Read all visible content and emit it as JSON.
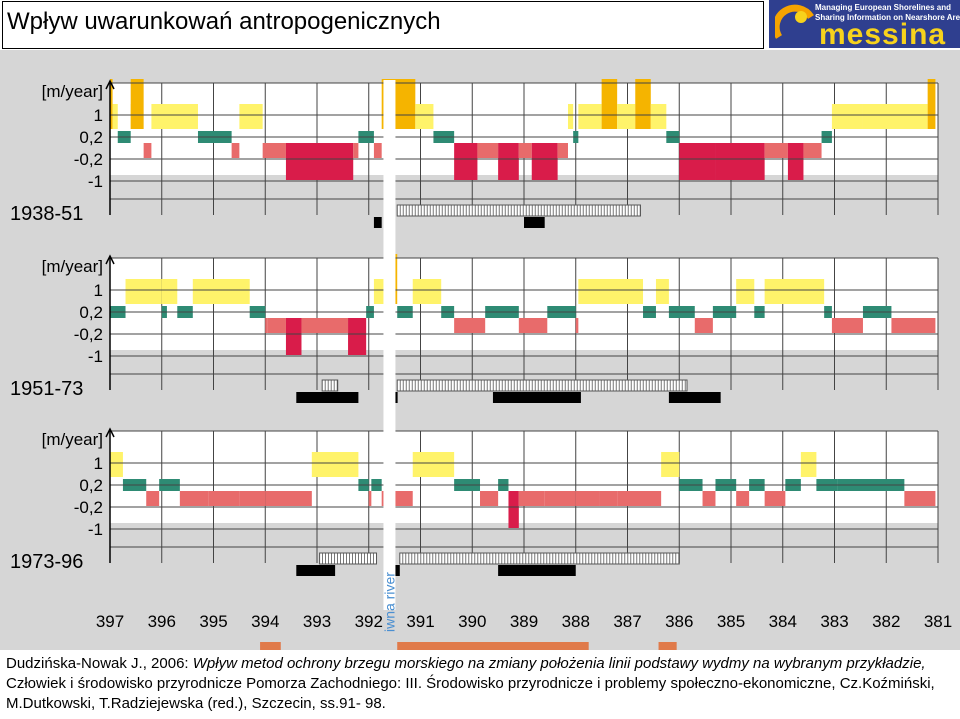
{
  "slide": {
    "title": "Wpływ uwarunkowań antropogenicznych",
    "logo": {
      "word": "messina",
      "tagline": "Managing European Shorelines and\nSharing Information on Nearshore Areas",
      "colors": {
        "background": "#2f3f8f",
        "word": "#f7d21c",
        "sun": "#f5a300"
      }
    }
  },
  "citation": {
    "author": "Dudzińska-Nowak J.",
    "year_part": ", 2006: ",
    "title_italic": "Wpływ metod ochrony brzegu morskiego na zmiany położenia linii podstawy wydmy na wybranym przykładzie,",
    "rest": " Człowiek i środowisko przyrodnicze Pomorza Zachodniego: III. Środowisko przyrodnicze i problemy społeczno-ekonomiczne, Cz.Koźmiński, M.Dutkowski, T.Radziejewska (red.), Szczecin, ss.91- 98."
  },
  "chart_data": {
    "type": "bar",
    "colors": {
      "panel_bg": "#d6d6d6",
      "strong_accretion": "#f5b400",
      "accretion": "#fff36a",
      "stable": "#2e8b74",
      "erosion": "#e86b6b",
      "strong_erosion": "#d91c4a",
      "structure_black": "#000000",
      "groin_outline": "#555555",
      "river_label": "#4a8fd1",
      "city_bar": "#e07a4a"
    },
    "x_axis": {
      "ticks": [
        "397",
        "396",
        "395",
        "394",
        "393",
        "392",
        "391",
        "390",
        "389",
        "388",
        "387",
        "386",
        "385",
        "384",
        "383",
        "382",
        "381"
      ],
      "direction": "km decreasing left to right",
      "river_label": "iwna river",
      "river_km": 391.6
    },
    "category_levels": [
      "1",
      "0,2",
      "-0,2",
      "-1"
    ],
    "unit": "[m/year]",
    "panels": [
      {
        "period": "1938-51",
        "segments": [
          [
            397.0,
            396.95,
            2
          ],
          [
            396.95,
            396.85,
            1
          ],
          [
            396.85,
            396.6,
            0
          ],
          [
            396.6,
            396.5,
            1
          ],
          [
            396.6,
            396.35,
            2
          ],
          [
            396.35,
            396.2,
            -1
          ],
          [
            396.2,
            395.3,
            1
          ],
          [
            395.3,
            394.65,
            0
          ],
          [
            394.65,
            394.5,
            -1
          ],
          [
            394.5,
            394.05,
            1
          ],
          [
            394.05,
            393.6,
            -1
          ],
          [
            393.6,
            392.3,
            -2
          ],
          [
            392.3,
            392.2,
            -1
          ],
          [
            392.2,
            391.9,
            0
          ],
          [
            391.9,
            391.75,
            -1
          ],
          [
            391.75,
            391.1,
            2
          ],
          [
            391.1,
            390.75,
            1
          ],
          [
            390.75,
            390.35,
            0
          ],
          [
            390.35,
            389.9,
            -2
          ],
          [
            389.9,
            389.5,
            -1
          ],
          [
            389.5,
            389.1,
            -2
          ],
          [
            389.1,
            388.85,
            -1
          ],
          [
            388.85,
            388.35,
            -2
          ],
          [
            388.35,
            388.15,
            -1
          ],
          [
            388.15,
            388.05,
            1
          ],
          [
            388.05,
            387.95,
            0
          ],
          [
            387.95,
            387.5,
            1
          ],
          [
            387.5,
            387.2,
            2
          ],
          [
            387.2,
            386.85,
            1
          ],
          [
            386.85,
            386.55,
            2
          ],
          [
            386.55,
            386.25,
            1
          ],
          [
            386.25,
            386.0,
            0
          ],
          [
            386.0,
            385.3,
            -2
          ],
          [
            385.3,
            384.35,
            -2
          ],
          [
            384.35,
            383.9,
            -1
          ],
          [
            383.9,
            383.6,
            -2
          ],
          [
            383.6,
            383.25,
            -1
          ],
          [
            383.25,
            383.05,
            0
          ],
          [
            383.05,
            382.45,
            1
          ],
          [
            382.45,
            381.2,
            1
          ],
          [
            381.2,
            381.05,
            2
          ]
        ],
        "structures": {
          "seawalls": [
            [
              391.9,
              391.75
            ],
            [
              391.68,
              391.6
            ],
            [
              389.0,
              388.6
            ]
          ],
          "groins": [
            [
              391.45,
              386.75
            ]
          ]
        }
      },
      {
        "period": "1951-73",
        "segments": [
          [
            397.0,
            396.7,
            0
          ],
          [
            396.7,
            396.0,
            1
          ],
          [
            396.0,
            395.9,
            0
          ],
          [
            396.0,
            395.7,
            1
          ],
          [
            395.7,
            395.4,
            0
          ],
          [
            395.4,
            394.3,
            1
          ],
          [
            394.3,
            394.0,
            0
          ],
          [
            394.0,
            393.95,
            -1
          ],
          [
            393.95,
            393.6,
            -1
          ],
          [
            393.6,
            393.3,
            -2
          ],
          [
            393.3,
            392.4,
            -1
          ],
          [
            392.4,
            392.05,
            -2
          ],
          [
            392.05,
            391.9,
            0
          ],
          [
            391.9,
            391.65,
            1
          ],
          [
            391.65,
            391.45,
            2
          ],
          [
            391.45,
            391.15,
            0
          ],
          [
            391.15,
            390.6,
            1
          ],
          [
            390.6,
            390.35,
            0
          ],
          [
            390.35,
            389.75,
            -1
          ],
          [
            389.75,
            389.1,
            0
          ],
          [
            389.1,
            388.55,
            -1
          ],
          [
            388.55,
            388.0,
            0
          ],
          [
            388.0,
            387.95,
            -1
          ],
          [
            387.95,
            386.7,
            1
          ],
          [
            386.7,
            386.45,
            0
          ],
          [
            386.45,
            386.2,
            1
          ],
          [
            386.2,
            385.7,
            0
          ],
          [
            385.7,
            385.35,
            -1
          ],
          [
            385.35,
            384.9,
            0
          ],
          [
            384.9,
            384.55,
            1
          ],
          [
            384.55,
            384.35,
            0
          ],
          [
            384.35,
            383.2,
            1
          ],
          [
            383.2,
            383.05,
            0
          ],
          [
            383.05,
            382.45,
            -1
          ],
          [
            382.45,
            381.9,
            0
          ],
          [
            381.9,
            381.05,
            -1
          ]
        ],
        "structures": {
          "seawalls": [
            [
              393.4,
              392.2
            ],
            [
              391.68,
              391.58
            ],
            [
              391.5,
              391.45
            ],
            [
              389.6,
              387.9
            ],
            [
              386.2,
              385.2
            ]
          ],
          "groins": [
            [
              392.9,
              392.6
            ],
            [
              391.45,
              385.85
            ]
          ]
        }
      },
      {
        "period": "1973-96",
        "segments": [
          [
            397.0,
            396.75,
            1
          ],
          [
            396.75,
            396.3,
            0
          ],
          [
            396.3,
            396.05,
            -1
          ],
          [
            396.05,
            395.65,
            0
          ],
          [
            395.65,
            395.1,
            -1
          ],
          [
            395.1,
            394.5,
            -1
          ],
          [
            394.5,
            394.0,
            -1
          ],
          [
            394.0,
            393.1,
            -1
          ],
          [
            393.1,
            392.2,
            1
          ],
          [
            392.2,
            392.0,
            0
          ],
          [
            392.0,
            391.95,
            -1
          ],
          [
            391.95,
            391.75,
            0
          ],
          [
            391.75,
            391.15,
            -1
          ],
          [
            391.15,
            390.35,
            1
          ],
          [
            390.35,
            389.85,
            0
          ],
          [
            389.85,
            389.5,
            -1
          ],
          [
            389.5,
            389.3,
            0
          ],
          [
            389.3,
            389.1,
            -2
          ],
          [
            389.1,
            388.6,
            -1
          ],
          [
            388.6,
            388.0,
            -1
          ],
          [
            388.0,
            387.55,
            -1
          ],
          [
            387.55,
            387.2,
            -1
          ],
          [
            387.2,
            386.35,
            -1
          ],
          [
            386.35,
            386.0,
            1
          ],
          [
            386.0,
            385.55,
            0
          ],
          [
            385.55,
            385.3,
            -1
          ],
          [
            385.3,
            384.9,
            0
          ],
          [
            384.9,
            384.65,
            -1
          ],
          [
            384.65,
            384.35,
            0
          ],
          [
            384.35,
            383.95,
            -1
          ],
          [
            383.95,
            383.65,
            0
          ],
          [
            383.65,
            383.35,
            1
          ],
          [
            383.35,
            382.95,
            0
          ],
          [
            382.95,
            381.65,
            0
          ],
          [
            381.65,
            381.05,
            -1
          ]
        ],
        "structures": {
          "seawalls": [
            [
              393.4,
              392.65
            ],
            [
              391.68,
              391.58
            ],
            [
              391.5,
              391.4
            ],
            [
              389.5,
              388.0
            ]
          ],
          "groins": [
            [
              392.95,
              391.85
            ],
            [
              391.4,
              386.0
            ]
          ]
        }
      }
    ],
    "city_bars": [
      [
        394.1,
        393.7
      ],
      [
        391.45,
        387.75
      ],
      [
        386.4,
        386.05
      ]
    ]
  }
}
